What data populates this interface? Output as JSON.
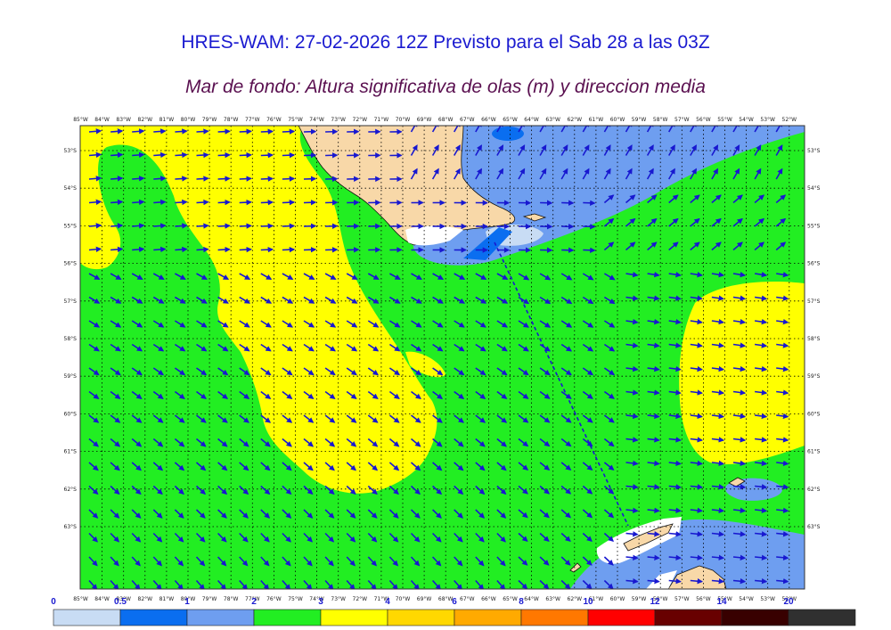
{
  "title": "HRES-WAM: 27-02-2026 12Z Previsto para el Sab 28 a las 03Z",
  "subtitle": "Mar de fondo: Altura significativa de olas (m) y direccion media",
  "map": {
    "lon_labels": [
      "85°W",
      "84°W",
      "83°W",
      "82°W",
      "81°W",
      "80°W",
      "79°W",
      "78°W",
      "77°W",
      "76°W",
      "75°W",
      "74°W",
      "73°W",
      "72°W",
      "71°W",
      "70°W",
      "69°W",
      "68°W",
      "67°W",
      "66°W",
      "65°W",
      "64°W",
      "63°W",
      "62°W",
      "61°W",
      "60°W",
      "59°W",
      "58°W",
      "57°W",
      "56°W",
      "55°W",
      "54°W",
      "53°W",
      "52°W"
    ],
    "lat_labels": [
      "53°S",
      "54°S",
      "55°S",
      "56°S",
      "57°S",
      "58°S",
      "59°S",
      "60°S",
      "61°S",
      "62°S",
      "63°S"
    ],
    "colors": {
      "land": "#f8d8a8",
      "ice": "#ffffff",
      "band_0_5": "#c8dcf4",
      "band_1_2": "#6e9ef0",
      "band_2_3": "#22ee22",
      "band_3_4": "#ffff00",
      "arrow": "#1818d0"
    }
  },
  "colorbar": {
    "bounds": [
      "0",
      "0.5",
      "1",
      "2",
      "3",
      "4",
      "6",
      "8",
      "10",
      "12",
      "14",
      "20"
    ],
    "colors": [
      "#c8dcf4",
      "#0a6ef0",
      "#6e9ef0",
      "#22ee22",
      "#ffff00",
      "#ffd800",
      "#ffaa00",
      "#ff7800",
      "#ff0000",
      "#680000",
      "#380000",
      "#303030"
    ]
  }
}
